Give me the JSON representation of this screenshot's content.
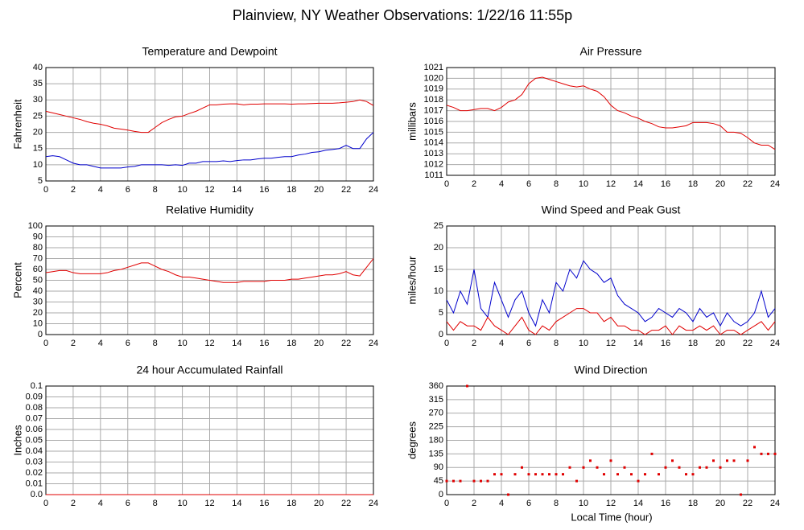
{
  "title": "Plainview, NY Weather Observations: 1/22/16 11:55p",
  "xlabel": "Local Time (hour)",
  "chart_data": [
    {
      "type": "line",
      "title": "Temperature and Dewpoint",
      "ylabel": "Fahrenheit",
      "xlim": [
        0,
        24
      ],
      "xticks": [
        0,
        2,
        4,
        6,
        8,
        10,
        12,
        14,
        16,
        18,
        20,
        22,
        24
      ],
      "ylim": [
        5,
        40
      ],
      "yticks": [
        5,
        10,
        15,
        20,
        25,
        30,
        35,
        40
      ],
      "grid": true,
      "x": [
        0,
        0.5,
        1,
        1.5,
        2,
        2.5,
        3,
        3.5,
        4,
        4.5,
        5,
        5.5,
        6,
        6.5,
        7,
        7.5,
        8,
        8.5,
        9,
        9.5,
        10,
        10.5,
        11,
        11.5,
        12,
        12.5,
        13,
        13.5,
        14,
        14.5,
        15,
        15.5,
        16,
        16.5,
        17,
        17.5,
        18,
        18.5,
        19,
        19.5,
        20,
        20.5,
        21,
        21.5,
        22,
        22.5,
        23,
        23.5,
        24
      ],
      "series": [
        {
          "color": "#e00000",
          "values": [
            26.5,
            26,
            25.5,
            25,
            24.5,
            24,
            23.3,
            22.8,
            22.5,
            22,
            21.3,
            21,
            20.7,
            20.3,
            20,
            20,
            21.5,
            23,
            24,
            24.8,
            25,
            25.8,
            26.5,
            27.5,
            28.5,
            28.5,
            28.7,
            28.8,
            28.8,
            28.5,
            28.7,
            28.7,
            28.8,
            28.8,
            28.8,
            28.8,
            28.7,
            28.8,
            28.8,
            28.9,
            29,
            29,
            29,
            29.1,
            29.3,
            29.5,
            30,
            29.5,
            28.3
          ]
        },
        {
          "color": "#0000cc",
          "values": [
            12.5,
            12.8,
            12.5,
            11.5,
            10.5,
            10,
            10,
            9.5,
            9,
            9,
            9,
            9,
            9.3,
            9.5,
            10,
            10,
            10,
            10,
            9.8,
            10,
            9.8,
            10.5,
            10.5,
            11,
            11,
            11,
            11.2,
            11,
            11.3,
            11.5,
            11.5,
            11.8,
            12,
            12,
            12.3,
            12.5,
            12.5,
            13,
            13.3,
            13.8,
            14,
            14.5,
            14.7,
            15,
            16,
            15,
            15,
            18,
            20
          ]
        }
      ]
    },
    {
      "type": "line",
      "title": "Air Pressure",
      "ylabel": "millibars",
      "xlim": [
        0,
        24
      ],
      "xticks": [
        0,
        2,
        4,
        6,
        8,
        10,
        12,
        14,
        16,
        18,
        20,
        22,
        24
      ],
      "ylim": [
        1011,
        1021
      ],
      "yticks": [
        1011,
        1012,
        1013,
        1014,
        1015,
        1016,
        1017,
        1018,
        1019,
        1020,
        1021
      ],
      "grid": true,
      "x": [
        0,
        0.5,
        1,
        1.5,
        2,
        2.5,
        3,
        3.5,
        4,
        4.5,
        5,
        5.5,
        6,
        6.5,
        7,
        7.5,
        8,
        8.5,
        9,
        9.5,
        10,
        10.5,
        11,
        11.5,
        12,
        12.5,
        13,
        13.5,
        14,
        14.5,
        15,
        15.5,
        16,
        16.5,
        17,
        17.5,
        18,
        18.5,
        19,
        19.5,
        20,
        20.5,
        21,
        21.5,
        22,
        22.5,
        23,
        23.5,
        24
      ],
      "series": [
        {
          "color": "#e00000",
          "values": [
            1017.5,
            1017.3,
            1017,
            1017,
            1017.1,
            1017.2,
            1017.2,
            1017,
            1017.3,
            1017.8,
            1018,
            1018.5,
            1019.5,
            1020,
            1020.1,
            1019.9,
            1019.7,
            1019.5,
            1019.3,
            1019.2,
            1019.3,
            1019,
            1018.8,
            1018.3,
            1017.5,
            1017,
            1016.8,
            1016.5,
            1016.3,
            1016,
            1015.8,
            1015.5,
            1015.4,
            1015.4,
            1015.5,
            1015.6,
            1015.9,
            1015.9,
            1015.9,
            1015.8,
            1015.6,
            1015,
            1015,
            1014.9,
            1014.5,
            1014,
            1013.8,
            1013.8,
            1013.4
          ]
        }
      ]
    },
    {
      "type": "line",
      "title": "Relative Humidity",
      "ylabel": "Percent",
      "xlim": [
        0,
        24
      ],
      "xticks": [
        0,
        2,
        4,
        6,
        8,
        10,
        12,
        14,
        16,
        18,
        20,
        22,
        24
      ],
      "ylim": [
        0,
        100
      ],
      "yticks": [
        0,
        10,
        20,
        30,
        40,
        50,
        60,
        70,
        80,
        90,
        100
      ],
      "grid": true,
      "x": [
        0,
        0.5,
        1,
        1.5,
        2,
        2.5,
        3,
        3.5,
        4,
        4.5,
        5,
        5.5,
        6,
        6.5,
        7,
        7.5,
        8,
        8.5,
        9,
        9.5,
        10,
        10.5,
        11,
        11.5,
        12,
        12.5,
        13,
        13.5,
        14,
        14.5,
        15,
        15.5,
        16,
        16.5,
        17,
        17.5,
        18,
        18.5,
        19,
        19.5,
        20,
        20.5,
        21,
        21.5,
        22,
        22.5,
        23,
        23.5,
        24
      ],
      "series": [
        {
          "color": "#e00000",
          "values": [
            57,
            58,
            59,
            59,
            57,
            56,
            56,
            56,
            56,
            57,
            59,
            60,
            62,
            64,
            66,
            66,
            63,
            60,
            58,
            55,
            53,
            53,
            52,
            51,
            50,
            49,
            48,
            48,
            48,
            49,
            49,
            49,
            49,
            50,
            50,
            50,
            51,
            51,
            52,
            53,
            54,
            55,
            55,
            56,
            58,
            55,
            54,
            62,
            70
          ]
        }
      ]
    },
    {
      "type": "line",
      "title": "Wind Speed and Peak Gust",
      "ylabel": "miles/hour",
      "xlim": [
        0,
        24
      ],
      "xticks": [
        0,
        2,
        4,
        6,
        8,
        10,
        12,
        14,
        16,
        18,
        20,
        22,
        24
      ],
      "ylim": [
        0,
        25
      ],
      "yticks": [
        0,
        5,
        10,
        15,
        20,
        25
      ],
      "grid": true,
      "x": [
        0,
        0.5,
        1,
        1.5,
        2,
        2.5,
        3,
        3.5,
        4,
        4.5,
        5,
        5.5,
        6,
        6.5,
        7,
        7.5,
        8,
        8.5,
        9,
        9.5,
        10,
        10.5,
        11,
        11.5,
        12,
        12.5,
        13,
        13.5,
        14,
        14.5,
        15,
        15.5,
        16,
        16.5,
        17,
        17.5,
        18,
        18.5,
        19,
        19.5,
        20,
        20.5,
        21,
        21.5,
        22,
        22.5,
        23,
        23.5,
        24
      ],
      "series": [
        {
          "color": "#0000cc",
          "values": [
            8,
            5,
            10,
            7,
            15,
            6,
            4,
            12,
            8,
            4,
            8,
            10,
            5,
            2,
            8,
            5,
            12,
            10,
            15,
            13,
            17,
            15,
            14,
            12,
            13,
            9,
            7,
            6,
            5,
            3,
            4,
            6,
            5,
            4,
            6,
            5,
            3,
            6,
            4,
            5,
            2,
            5,
            3,
            2,
            3,
            5,
            10,
            4,
            6
          ]
        },
        {
          "color": "#e00000",
          "values": [
            3,
            1,
            3,
            2,
            2,
            1,
            4,
            2,
            1,
            0,
            2,
            4,
            1,
            0,
            2,
            1,
            3,
            4,
            5,
            6,
            6,
            5,
            5,
            3,
            4,
            2,
            2,
            1,
            1,
            0,
            1,
            1,
            2,
            0,
            2,
            1,
            1,
            2,
            1,
            2,
            0,
            1,
            1,
            0,
            1,
            2,
            3,
            1,
            3
          ]
        }
      ]
    },
    {
      "type": "line",
      "title": "24 hour Accumulated Rainfall",
      "ylabel": "Inches",
      "xlim": [
        0,
        24
      ],
      "xticks": [
        0,
        2,
        4,
        6,
        8,
        10,
        12,
        14,
        16,
        18,
        20,
        22,
        24
      ],
      "ylim": [
        0,
        0.1
      ],
      "yticks": [
        {
          "value": 0,
          "label": "0.0"
        },
        0.01,
        0.02,
        0.03,
        0.04,
        0.05,
        0.06,
        0.07,
        0.08,
        0.09,
        0.1
      ],
      "grid": true,
      "x": [
        0,
        24
      ],
      "series": [
        {
          "color": "#e00000",
          "values": [
            0,
            0
          ]
        }
      ]
    },
    {
      "type": "scatter",
      "title": "Wind Direction",
      "ylabel": "degrees",
      "xlim": [
        0,
        24
      ],
      "xticks": [
        0,
        2,
        4,
        6,
        8,
        10,
        12,
        14,
        16,
        18,
        20,
        22,
        24
      ],
      "ylim": [
        0,
        360
      ],
      "yticks": [
        0,
        45,
        90,
        135,
        180,
        225,
        270,
        315,
        360
      ],
      "grid": true,
      "x": [
        0,
        0.5,
        1,
        1.5,
        2,
        2.5,
        3,
        3.5,
        4,
        4.5,
        5,
        5.5,
        6,
        6.5,
        7,
        7.5,
        8,
        8.5,
        9,
        9.5,
        10,
        10.5,
        11,
        11.5,
        12,
        12.5,
        13,
        13.5,
        14,
        14.5,
        15,
        15.5,
        16,
        16.5,
        17,
        17.5,
        18,
        18.5,
        19,
        19.5,
        20,
        20.5,
        21,
        21.5,
        22,
        22.5,
        23,
        23.5,
        24
      ],
      "series": [
        {
          "color": "#e00000",
          "values": [
            45,
            45,
            45,
            360,
            45,
            45,
            45,
            67.5,
            67.5,
            0,
            67.5,
            90,
            67.5,
            67.5,
            67.5,
            67.5,
            67.5,
            67.5,
            90,
            45,
            90,
            112.5,
            90,
            67.5,
            112.5,
            67.5,
            90,
            67.5,
            45,
            67.5,
            135,
            67.5,
            90,
            112.5,
            90,
            67.5,
            67.5,
            90,
            90,
            112.5,
            90,
            112.5,
            112.5,
            0,
            112.5,
            157.5,
            135,
            135,
            135
          ]
        }
      ]
    }
  ]
}
